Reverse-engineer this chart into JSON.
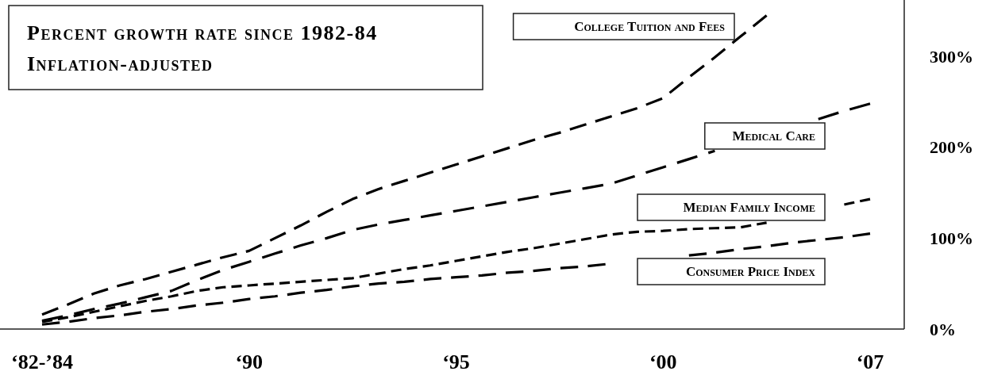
{
  "chart_data": {
    "type": "line",
    "title": "Percent growth rate since 1982-84",
    "subtitle": "Inflation-adjusted",
    "categories": [
      "‘82-’84",
      null,
      null,
      null,
      null,
      null,
      null,
      null,
      "‘90",
      null,
      null,
      null,
      null,
      null,
      null,
      null,
      "‘95",
      null,
      null,
      null,
      null,
      null,
      null,
      null,
      "‘00",
      null,
      null,
      null,
      null,
      null,
      null,
      null,
      "‘07"
    ],
    "ylim": [
      0,
      362
    ],
    "yticks": [
      {
        "value": 0,
        "label": "0%"
      },
      {
        "value": 100,
        "label": "100%"
      },
      {
        "value": 200,
        "label": "200%"
      },
      {
        "value": 300,
        "label": "300%"
      }
    ],
    "line_style": "dashed",
    "series": [
      {
        "name": "College Tuition and Fees",
        "color": "#000000",
        "values": [
          16,
          27,
          39,
          48,
          55,
          63,
          71,
          79,
          86,
          100,
          114,
          129,
          143,
          154,
          163,
          172,
          181,
          190,
          199,
          208,
          216,
          225,
          234,
          243,
          254,
          277,
          299,
          322,
          345,
          null,
          null,
          null,
          null
        ]
      },
      {
        "name": "Medical Care",
        "color": "#000000",
        "values": [
          9,
          15,
          22,
          28,
          35,
          42,
          54,
          65,
          74,
          83,
          92,
          100,
          109,
          115,
          120,
          125,
          130,
          135,
          140,
          145,
          150,
          155,
          160,
          169,
          178,
          187,
          196,
          null,
          null,
          null,
          231,
          240,
          248
        ]
      },
      {
        "name": "Median Family Income",
        "color": "#000000",
        "values": [
          8,
          13,
          19,
          25,
          31,
          36,
          42,
          46,
          48,
          50,
          52,
          54,
          56,
          61,
          66,
          70,
          75,
          80,
          85,
          89,
          94,
          99,
          104,
          107,
          108,
          110,
          111,
          112,
          117,
          null,
          null,
          137,
          143
        ]
      },
      {
        "name": "Consumer Price Index",
        "color": "#000000",
        "values": [
          5,
          8,
          12,
          15,
          19,
          22,
          26,
          29,
          33,
          36,
          40,
          43,
          47,
          50,
          52,
          55,
          57,
          59,
          62,
          64,
          67,
          69,
          72,
          null,
          null,
          81,
          84,
          88,
          91,
          95,
          98,
          101,
          105
        ]
      }
    ]
  }
}
